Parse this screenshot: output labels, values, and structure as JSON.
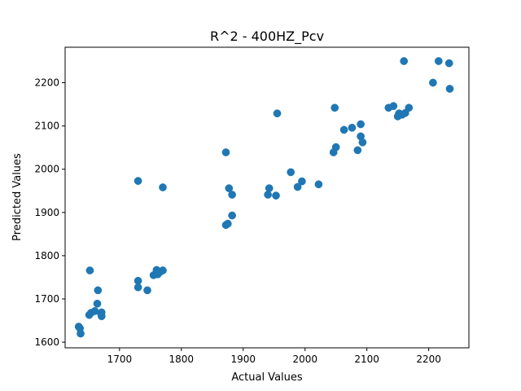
{
  "chart_data": {
    "type": "scatter",
    "title": "R^2 - 400HZ_Pcv",
    "xlabel": "Actual Values",
    "ylabel": "Predicted Values",
    "xlim": [
      1612,
      2265
    ],
    "ylim": [
      1587,
      2282
    ],
    "xticks": [
      1700,
      1800,
      1900,
      2000,
      2100,
      2200
    ],
    "yticks": [
      1600,
      1700,
      1800,
      1900,
      2000,
      2100,
      2200
    ],
    "grid": false,
    "color": "#1f77b4",
    "points": [
      [
        1634,
        1636
      ],
      [
        1636,
        1632
      ],
      [
        1637,
        1620
      ],
      [
        1651,
        1663
      ],
      [
        1654,
        1668
      ],
      [
        1660,
        1672
      ],
      [
        1664,
        1689
      ],
      [
        1665,
        1720
      ],
      [
        1652,
        1766
      ],
      [
        1670,
        1666
      ],
      [
        1671,
        1660
      ],
      [
        1671,
        1669
      ],
      [
        1730,
        1742
      ],
      [
        1730,
        1727
      ],
      [
        1730,
        1973
      ],
      [
        1745,
        1720
      ],
      [
        1755,
        1755
      ],
      [
        1760,
        1767
      ],
      [
        1762,
        1757
      ],
      [
        1765,
        1762
      ],
      [
        1770,
        1766
      ],
      [
        1770,
        1958
      ],
      [
        1872,
        1871
      ],
      [
        1875,
        1874
      ],
      [
        1877,
        1956
      ],
      [
        1882,
        1941
      ],
      [
        1882,
        1893
      ],
      [
        1872,
        2039
      ],
      [
        1940,
        1941
      ],
      [
        1942,
        1956
      ],
      [
        1953,
        1939
      ],
      [
        1955,
        2129
      ],
      [
        1977,
        1993
      ],
      [
        1988,
        1959
      ],
      [
        1995,
        1972
      ],
      [
        2022,
        1965
      ],
      [
        2046,
        2039
      ],
      [
        2048,
        2142
      ],
      [
        2050,
        2051
      ],
      [
        2063,
        2091
      ],
      [
        2076,
        2096
      ],
      [
        2085,
        2044
      ],
      [
        2090,
        2076
      ],
      [
        2090,
        2104
      ],
      [
        2093,
        2062
      ],
      [
        2135,
        2142
      ],
      [
        2143,
        2146
      ],
      [
        2150,
        2122
      ],
      [
        2152,
        2129
      ],
      [
        2157,
        2126
      ],
      [
        2160,
        2250
      ],
      [
        2162,
        2130
      ],
      [
        2168,
        2142
      ],
      [
        2207,
        2200
      ],
      [
        2216,
        2250
      ],
      [
        2233,
        2245
      ],
      [
        2234,
        2186
      ]
    ]
  }
}
